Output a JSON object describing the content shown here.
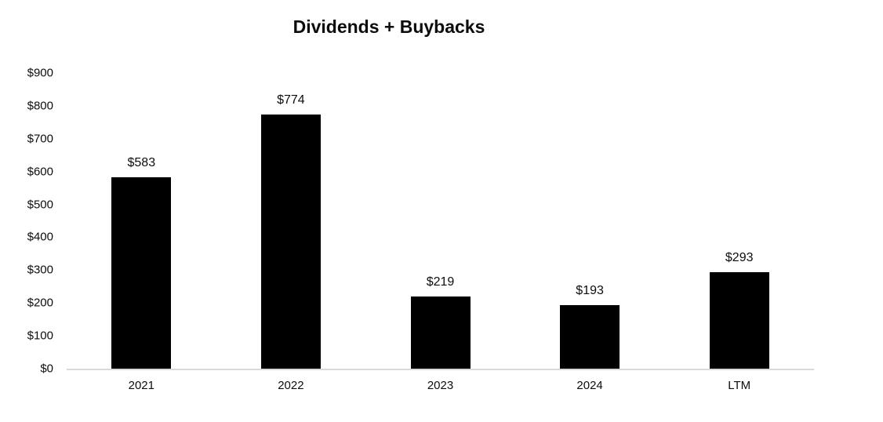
{
  "chart_data": {
    "type": "bar",
    "title": "Dividends + Buybacks",
    "categories": [
      "2021",
      "2022",
      "2023",
      "2024",
      "LTM"
    ],
    "values": [
      583,
      774,
      219,
      193,
      293
    ],
    "value_labels": [
      "$583",
      "$774",
      "$219",
      "$193",
      "$293"
    ],
    "y_ticks": [
      "$900",
      "$800",
      "$700",
      "$600",
      "$500",
      "$400",
      "$300",
      "$200",
      "$100",
      "$0"
    ],
    "y_tick_values": [
      900,
      800,
      700,
      600,
      500,
      400,
      300,
      200,
      100,
      0
    ],
    "ylim": [
      0,
      900
    ],
    "xlabel": "",
    "ylabel": "",
    "grid": false,
    "legend": "none",
    "colors": {
      "bar": "#000000",
      "axis_line": "#d9d9d9",
      "text": "#0d0d0d",
      "background": "#ffffff"
    }
  }
}
